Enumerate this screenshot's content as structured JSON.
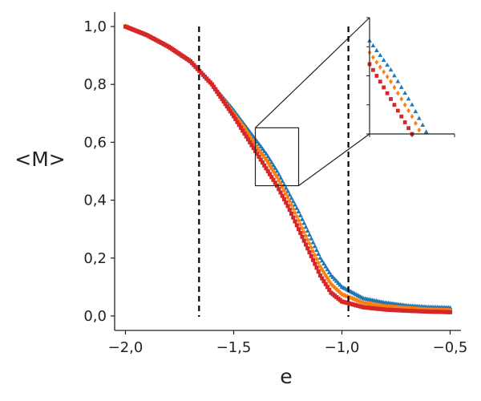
{
  "chart_data": {
    "type": "scatter",
    "title": "",
    "xlabel": "e",
    "ylabel": "<M>",
    "xlim": [
      -2.05,
      -0.45
    ],
    "ylim": [
      -0.05,
      1.05
    ],
    "xticks": [
      -2.0,
      -1.5,
      -1.0,
      -0.5
    ],
    "xtick_labels": [
      "−2,0",
      "−1,5",
      "−1,0",
      "−0,5"
    ],
    "yticks": [
      0.0,
      0.2,
      0.4,
      0.6,
      0.8,
      1.0
    ],
    "ytick_labels": [
      "0,0",
      "0,2",
      "0,4",
      "0,6",
      "0,8",
      "1,0"
    ],
    "grid": false,
    "vertical_lines": [
      -1.66,
      -0.97
    ],
    "zoom_box": {
      "x": [
        -1.4,
        -1.2
      ],
      "y": [
        0.45,
        0.65
      ]
    },
    "series": [
      {
        "marker": "triangle",
        "color": "#1f77b4",
        "x": [
          -2.0,
          -1.9,
          -1.8,
          -1.7,
          -1.6,
          -1.5,
          -1.45,
          -1.4,
          -1.35,
          -1.3,
          -1.25,
          -1.2,
          -1.15,
          -1.1,
          -1.05,
          -1.0,
          -0.9,
          -0.8,
          -0.7,
          -0.6,
          -0.5
        ],
        "values": [
          1.0,
          0.97,
          0.93,
          0.88,
          0.8,
          0.71,
          0.66,
          0.61,
          0.56,
          0.5,
          0.43,
          0.36,
          0.28,
          0.2,
          0.14,
          0.1,
          0.06,
          0.045,
          0.035,
          0.03,
          0.028
        ]
      },
      {
        "marker": "diamond",
        "color": "#ff7f0e",
        "x": [
          -2.0,
          -1.9,
          -1.8,
          -1.7,
          -1.6,
          -1.5,
          -1.45,
          -1.4,
          -1.35,
          -1.3,
          -1.25,
          -1.2,
          -1.15,
          -1.1,
          -1.05,
          -1.0,
          -0.9,
          -0.8,
          -0.7,
          -0.6,
          -0.5
        ],
        "values": [
          1.0,
          0.97,
          0.93,
          0.88,
          0.8,
          0.7,
          0.65,
          0.59,
          0.54,
          0.48,
          0.41,
          0.33,
          0.25,
          0.17,
          0.11,
          0.075,
          0.045,
          0.033,
          0.027,
          0.022,
          0.02
        ]
      },
      {
        "marker": "square",
        "color": "#d62728",
        "x": [
          -2.0,
          -1.9,
          -1.8,
          -1.7,
          -1.6,
          -1.5,
          -1.45,
          -1.4,
          -1.35,
          -1.3,
          -1.25,
          -1.2,
          -1.15,
          -1.1,
          -1.05,
          -1.0,
          -0.9,
          -0.8,
          -0.7,
          -0.6,
          -0.5
        ],
        "values": [
          1.0,
          0.97,
          0.93,
          0.88,
          0.8,
          0.69,
          0.63,
          0.57,
          0.51,
          0.45,
          0.38,
          0.3,
          0.22,
          0.14,
          0.08,
          0.05,
          0.03,
          0.022,
          0.018,
          0.015,
          0.013
        ]
      }
    ]
  }
}
